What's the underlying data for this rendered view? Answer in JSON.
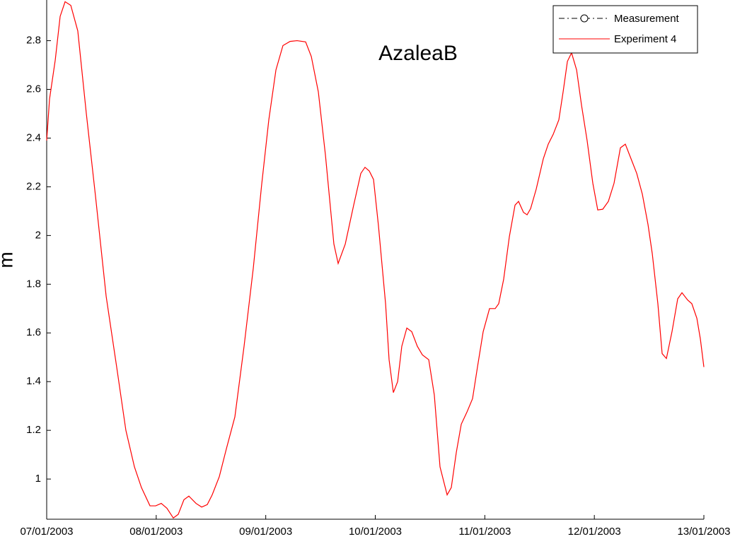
{
  "chart_data": {
    "type": "line",
    "title": "AzaleaB",
    "y_label": "m",
    "xlim": [
      0,
      6
    ],
    "xticks": [
      {
        "value": 0,
        "label": "07/01/2003"
      },
      {
        "value": 1,
        "label": "08/01/2003"
      },
      {
        "value": 2,
        "label": "09/01/2003"
      },
      {
        "value": 3,
        "label": "10/01/2003"
      },
      {
        "value": 4,
        "label": "11/01/2003"
      },
      {
        "value": 5,
        "label": "12/01/2003"
      },
      {
        "value": 6,
        "label": "13/01/2003"
      }
    ],
    "ylim": [
      0.835,
      2.967
    ],
    "yticks": [
      1,
      1.2,
      1.4,
      1.6,
      1.8,
      2,
      2.2,
      2.4,
      2.6,
      2.8
    ],
    "grid": false,
    "legend": "upper right",
    "series": [
      {
        "name": "Measurement",
        "color": "#000000",
        "linestyle": "-.",
        "marker": "o",
        "x": [],
        "values": []
      },
      {
        "name": "Experiment 4",
        "color": "#ff0000",
        "linestyle": "-",
        "x": [
          0,
          0.026,
          0.078,
          0.123,
          0.168,
          0.22,
          0.284,
          0.362,
          0.446,
          0.543,
          0.639,
          0.723,
          0.801,
          0.865,
          0.943,
          0.995,
          1.046,
          1.098,
          1.156,
          1.201,
          1.253,
          1.298,
          1.363,
          1.415,
          1.466,
          1.511,
          1.576,
          1.641,
          1.718,
          1.802,
          1.886,
          1.963,
          2.028,
          2.093,
          2.157,
          2.222,
          2.286,
          2.364,
          2.416,
          2.48,
          2.545,
          2.622,
          2.661,
          2.726,
          2.803,
          2.868,
          2.906,
          2.945,
          2.984,
          3.029,
          3.094,
          3.126,
          3.165,
          3.204,
          3.242,
          3.288,
          3.333,
          3.384,
          3.43,
          3.488,
          3.539,
          3.591,
          3.656,
          3.694,
          3.74,
          3.785,
          3.837,
          3.888,
          3.933,
          3.985,
          4.043,
          4.095,
          4.127,
          4.172,
          4.224,
          4.276,
          4.308,
          4.353,
          4.386,
          4.418,
          4.469,
          4.534,
          4.579,
          4.624,
          4.676,
          4.715,
          4.754,
          4.792,
          4.838,
          4.883,
          4.934,
          4.986,
          5.031,
          5.077,
          5.128,
          5.18,
          5.238,
          5.283,
          5.335,
          5.387,
          5.438,
          5.49,
          5.529,
          5.58,
          5.619,
          5.658,
          5.709,
          5.761,
          5.8,
          5.852,
          5.89,
          5.936,
          5.968,
          6
        ],
        "values": [
          2.39,
          2.56,
          2.72,
          2.9,
          2.96,
          2.945,
          2.84,
          2.5,
          2.16,
          1.75,
          1.46,
          1.2,
          1.05,
          0.965,
          0.89,
          0.89,
          0.9,
          0.88,
          0.84,
          0.855,
          0.915,
          0.93,
          0.9,
          0.885,
          0.895,
          0.935,
          1.01,
          1.125,
          1.255,
          1.545,
          1.865,
          2.21,
          2.475,
          2.68,
          2.78,
          2.797,
          2.8,
          2.795,
          2.735,
          2.59,
          2.33,
          1.965,
          1.885,
          1.965,
          2.125,
          2.255,
          2.28,
          2.265,
          2.23,
          2.04,
          1.72,
          1.49,
          1.355,
          1.4,
          1.545,
          1.62,
          1.605,
          1.545,
          1.51,
          1.49,
          1.345,
          1.05,
          0.935,
          0.965,
          1.11,
          1.225,
          1.275,
          1.33,
          1.46,
          1.605,
          1.7,
          1.7,
          1.72,
          1.82,
          1.995,
          2.125,
          2.14,
          2.095,
          2.085,
          2.11,
          2.19,
          2.315,
          2.375,
          2.415,
          2.475,
          2.59,
          2.715,
          2.75,
          2.68,
          2.535,
          2.39,
          2.215,
          2.105,
          2.108,
          2.14,
          2.215,
          2.36,
          2.375,
          2.315,
          2.255,
          2.17,
          2.045,
          1.925,
          1.72,
          1.515,
          1.495,
          1.605,
          1.74,
          1.765,
          1.735,
          1.72,
          1.66,
          1.575,
          1.46
        ]
      }
    ]
  }
}
